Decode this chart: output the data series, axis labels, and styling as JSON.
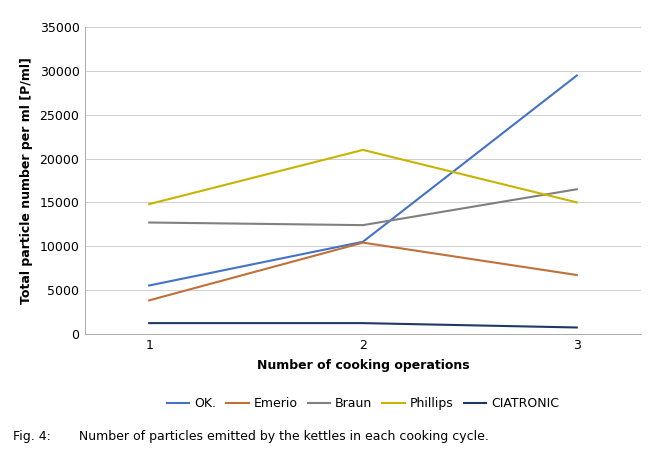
{
  "x": [
    1,
    2,
    3
  ],
  "series": {
    "OK.": [
      5500,
      10500,
      29500
    ],
    "Emerio": [
      3800,
      10400,
      6700
    ],
    "Braun": [
      12700,
      12400,
      16500
    ],
    "Phillips": [
      14800,
      21000,
      15000
    ],
    "CIATRONIC": [
      1200,
      1200,
      700
    ]
  },
  "colors": {
    "OK.": "#4472c4",
    "Emerio": "#c0703b",
    "Braun": "#808080",
    "Phillips": "#c8b400",
    "CIATRONIC": "#1f3864"
  },
  "xlabel": "Number of cooking operations",
  "ylabel": "Total particle number per ml [P/ml]",
  "ylim": [
    0,
    35000
  ],
  "xlim": [
    0.7,
    3.3
  ],
  "yticks": [
    0,
    5000,
    10000,
    15000,
    20000,
    25000,
    30000,
    35000
  ],
  "xticks": [
    1,
    2,
    3
  ],
  "caption": "Fig. 4:       Number of particles emitted by the kettles in each cooking cycle.",
  "figsize": [
    6.54,
    4.57
  ],
  "dpi": 100,
  "background_color": "#ffffff",
  "grid_color": "#d0d0d0",
  "legend_order": [
    "OK.",
    "Emerio",
    "Braun",
    "Phillips",
    "CIATRONIC"
  ]
}
